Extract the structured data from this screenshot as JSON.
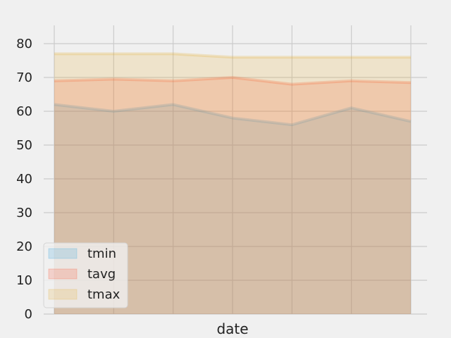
{
  "chart_data": {
    "type": "area",
    "title": "",
    "xlabel": "date",
    "ylabel": "",
    "ylim": [
      0,
      80
    ],
    "yticks": [
      0,
      10,
      20,
      30,
      40,
      50,
      60,
      70,
      80
    ],
    "x": [
      0,
      1,
      2,
      3,
      4,
      5,
      6
    ],
    "grid": true,
    "legend_position": "lower-left",
    "series": [
      {
        "name": "tmin",
        "color": "#30a2da",
        "values": [
          62,
          60,
          62,
          58,
          56,
          61,
          57
        ]
      },
      {
        "name": "tavg",
        "color": "#fc4f30",
        "values": [
          69,
          69.5,
          69,
          70,
          68,
          69,
          68.5
        ]
      },
      {
        "name": "tmax",
        "color": "#e5ae38",
        "values": [
          77,
          77,
          77,
          76,
          76,
          76,
          76
        ]
      }
    ]
  }
}
